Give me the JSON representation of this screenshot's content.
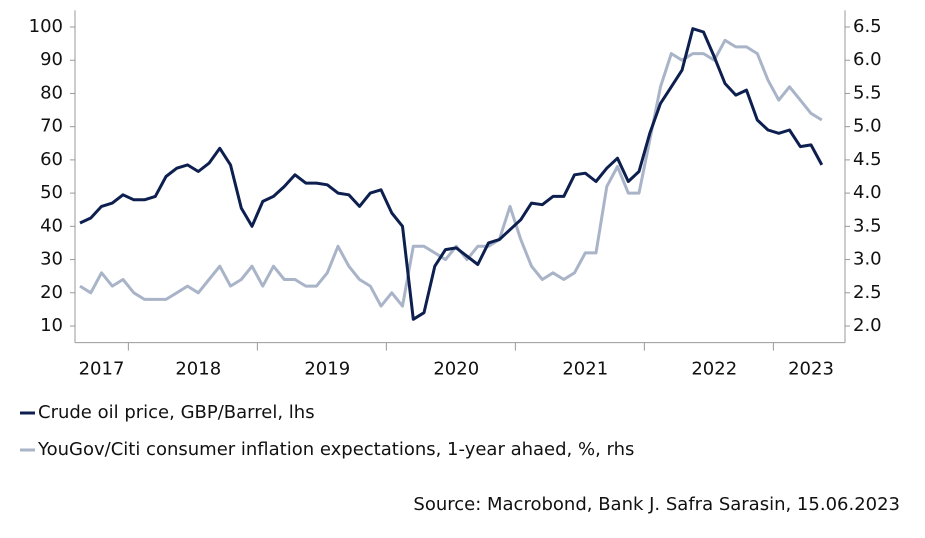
{
  "chart_data": {
    "type": "line",
    "categories": [
      null,
      null,
      "2017",
      null,
      null,
      null,
      null,
      null,
      null,
      null,
      null,
      "2018",
      null,
      null,
      null,
      null,
      null,
      null,
      null,
      null,
      null,
      null,
      null,
      "2019",
      null,
      null,
      null,
      null,
      null,
      null,
      null,
      null,
      null,
      null,
      null,
      "2020",
      null,
      null,
      null,
      null,
      null,
      null,
      null,
      null,
      null,
      null,
      null,
      "2021",
      null,
      null,
      null,
      null,
      null,
      null,
      null,
      null,
      null,
      null,
      null,
      "2022",
      null,
      null,
      null,
      null,
      null,
      null,
      null,
      null,
      "2023",
      null
    ],
    "series": [
      {
        "name": "Crude oil price, GBP/Barrel, lhs",
        "color": "#0d1f4f",
        "axis": "y",
        "values": [
          41,
          42.5,
          46,
          47,
          49.5,
          48,
          48,
          49,
          55,
          57.5,
          58.5,
          56.5,
          59,
          63.5,
          58.5,
          45.5,
          40,
          47.5,
          49,
          52,
          55.5,
          53,
          53,
          52.5,
          50,
          49.5,
          46,
          50,
          51,
          44,
          40,
          12,
          14,
          28,
          33,
          33.5,
          31,
          28.5,
          35,
          36,
          39,
          42,
          47,
          46.5,
          49,
          49,
          55.5,
          56,
          53.5,
          57.5,
          60.5,
          53.5,
          56.5,
          68,
          77,
          82,
          87,
          99.5,
          98.5,
          91,
          83,
          79.5,
          81,
          72,
          69,
          68,
          69,
          64,
          64.5,
          58.5
        ]
      },
      {
        "name": "YouGov/Citi consumer inflation expectations, 1-year ahaed, %, rhs",
        "color": "#a9b4c8",
        "axis": "y2",
        "values": [
          2.6,
          2.5,
          2.8,
          2.6,
          2.7,
          2.5,
          2.4,
          2.4,
          2.4,
          2.5,
          2.6,
          2.5,
          2.7,
          2.9,
          2.6,
          2.7,
          2.9,
          2.6,
          2.9,
          2.7,
          2.7,
          2.6,
          2.6,
          2.8,
          3.2,
          2.9,
          2.7,
          2.6,
          2.3,
          2.5,
          2.3,
          3.2,
          3.2,
          3.1,
          3.0,
          3.2,
          3.0,
          3.2,
          3.2,
          3.3,
          3.8,
          3.3,
          2.9,
          2.7,
          2.8,
          2.7,
          2.8,
          3.1,
          3.1,
          4.1,
          4.4,
          4.0,
          4.0,
          4.8,
          5.6,
          6.1,
          6.0,
          6.1,
          6.1,
          6.0,
          6.3,
          6.2,
          6.2,
          6.1,
          5.7,
          5.4,
          5.6,
          5.4,
          5.2,
          5.1
        ]
      }
    ],
    "ylim": [
      5,
      105
    ],
    "yticks": [
      10,
      20,
      30,
      40,
      50,
      60,
      70,
      80,
      90,
      100
    ],
    "y2lim": [
      1.75,
      6.75
    ],
    "y2ticks": [
      {
        "value": 2,
        "label": "2.0"
      },
      2.5,
      {
        "value": 3,
        "label": "3.0"
      },
      3.5,
      {
        "value": 4,
        "label": "4.0"
      },
      4.5,
      {
        "value": 5,
        "label": "5.0"
      },
      5.5,
      {
        "value": 6,
        "label": "6.0"
      },
      6.5
    ],
    "source": "Source: Macrobond, Bank J. Safra Sarasin, 15.06.2023"
  }
}
